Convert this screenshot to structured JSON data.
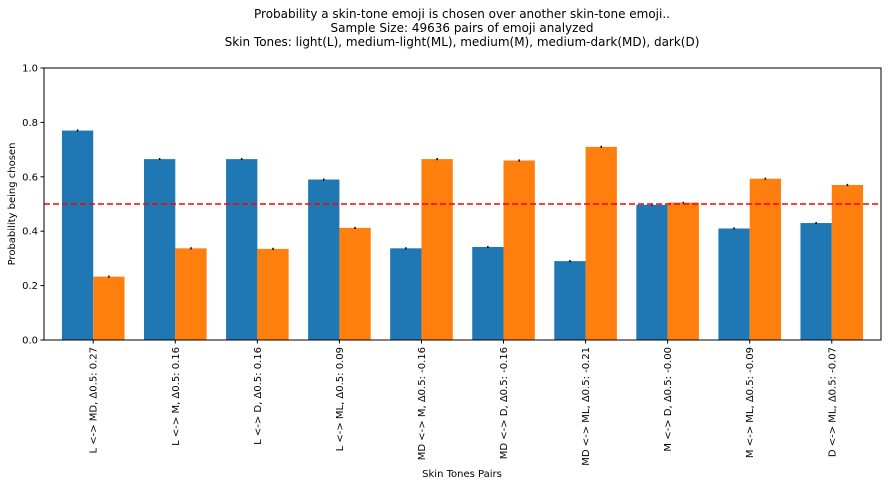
{
  "chart_data": {
    "type": "bar",
    "title": [
      "Probability a skin-tone emoji is chosen over another skin-tone emoji..",
      "Sample Size: 49636 pairs of emoji analyzed",
      "Skin Tones: light(L), medium-light(ML), medium(M), medium-dark(MD), dark(D)"
    ],
    "xlabel": "Skin Tones Pairs",
    "ylabel": "Probability being chosen",
    "ylim": [
      0,
      1.0
    ],
    "yticks": [
      "0.0",
      "0.2",
      "0.4",
      "0.6",
      "0.8",
      "1.0"
    ],
    "categories": [
      "L <-> MD, Δ0.5: 0.27",
      "L <-> M, Δ0.5: 0.16",
      "L <-> D, Δ0.5: 0.16",
      "L <-> ML, Δ0.5: 0.09",
      "MD <-> M, Δ0.5: -0.16",
      "MD <-> D, Δ0.5: -0.16",
      "MD <-> ML, Δ0.5: -0.21",
      "M <-> D, Δ0.5: -0.00",
      "M <-> ML, Δ0.5: -0.09",
      "D <-> ML, Δ0.5: -0.07"
    ],
    "series": [
      {
        "color": "#1f77b4",
        "values": [
          0.77,
          0.665,
          0.665,
          0.59,
          0.337,
          0.342,
          0.29,
          0.497,
          0.41,
          0.43
        ],
        "errors": [
          0.004,
          0.004,
          0.004,
          0.004,
          0.004,
          0.004,
          0.004,
          0.003,
          0.004,
          0.004
        ]
      },
      {
        "color": "#ff7f0e",
        "values": [
          0.233,
          0.337,
          0.335,
          0.412,
          0.665,
          0.66,
          0.71,
          0.505,
          0.593,
          0.57
        ],
        "errors": [
          0.004,
          0.004,
          0.004,
          0.004,
          0.004,
          0.004,
          0.004,
          0.003,
          0.004,
          0.004
        ]
      }
    ],
    "reference_line": {
      "y": 0.5,
      "color": "#ff0000",
      "style": "dashed"
    },
    "grid": false,
    "legend": "none"
  }
}
